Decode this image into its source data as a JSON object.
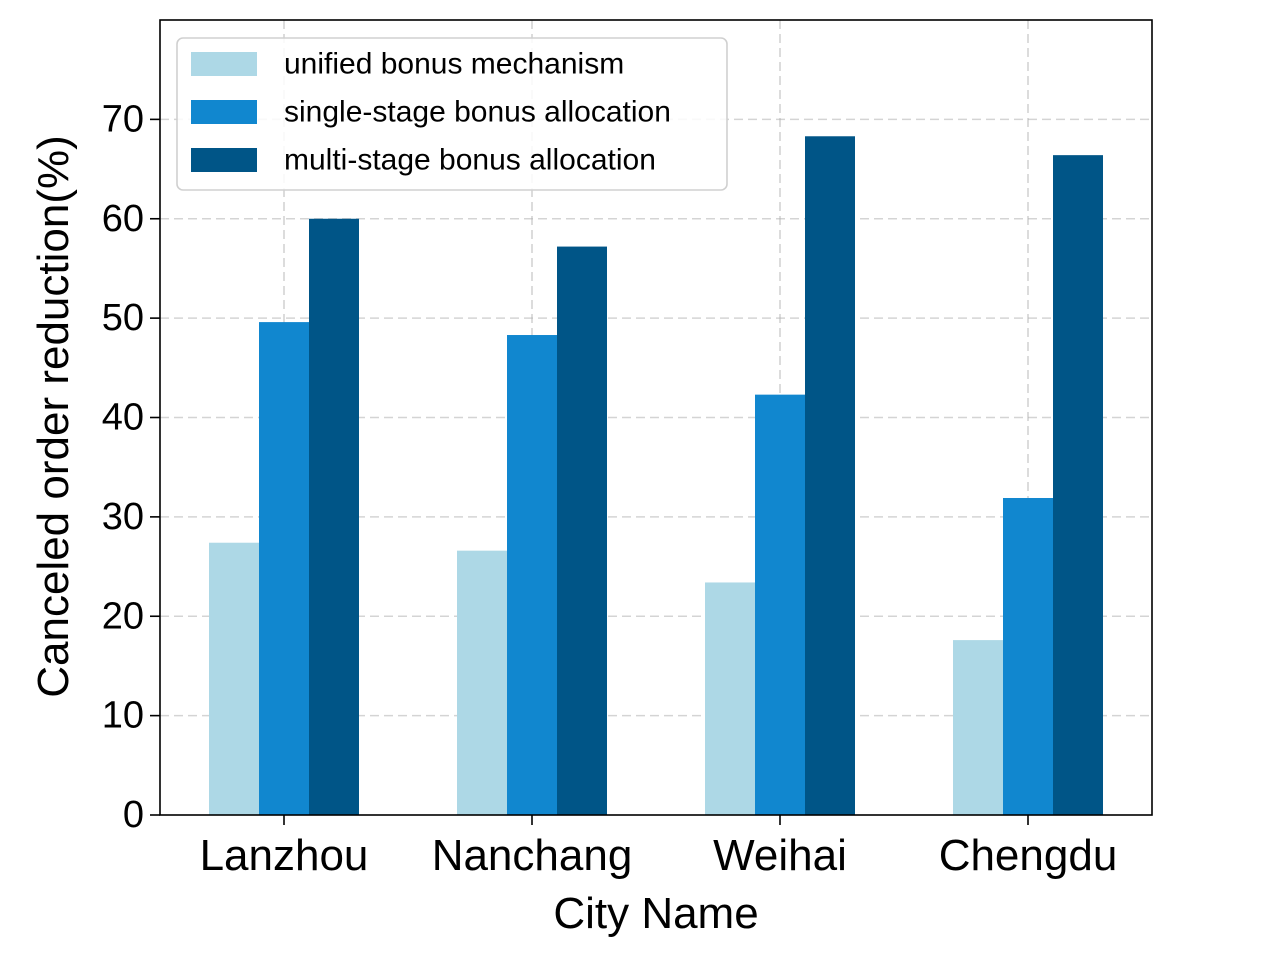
{
  "chart_data": {
    "type": "bar",
    "title": "",
    "xlabel": "City Name",
    "ylabel": "Canceled order reduction(%)",
    "categories": [
      "Lanzhou",
      "Nanchang",
      "Weihai",
      "Chengdu"
    ],
    "series": [
      {
        "name": "unified bonus mechanism",
        "color": "#add8e6",
        "values": [
          27.4,
          26.6,
          23.4,
          17.6
        ]
      },
      {
        "name": "single-stage bonus allocation",
        "color": "#1187cf",
        "values": [
          49.6,
          48.3,
          42.3,
          31.9
        ]
      },
      {
        "name": "multi-stage bonus allocation",
        "color": "#005587",
        "values": [
          60.0,
          57.2,
          68.3,
          66.4
        ]
      }
    ],
    "ylim": [
      0,
      80
    ],
    "yticks": [
      0,
      10,
      20,
      30,
      40,
      50,
      60,
      70
    ],
    "grid": true,
    "legend_position": "top-left"
  }
}
